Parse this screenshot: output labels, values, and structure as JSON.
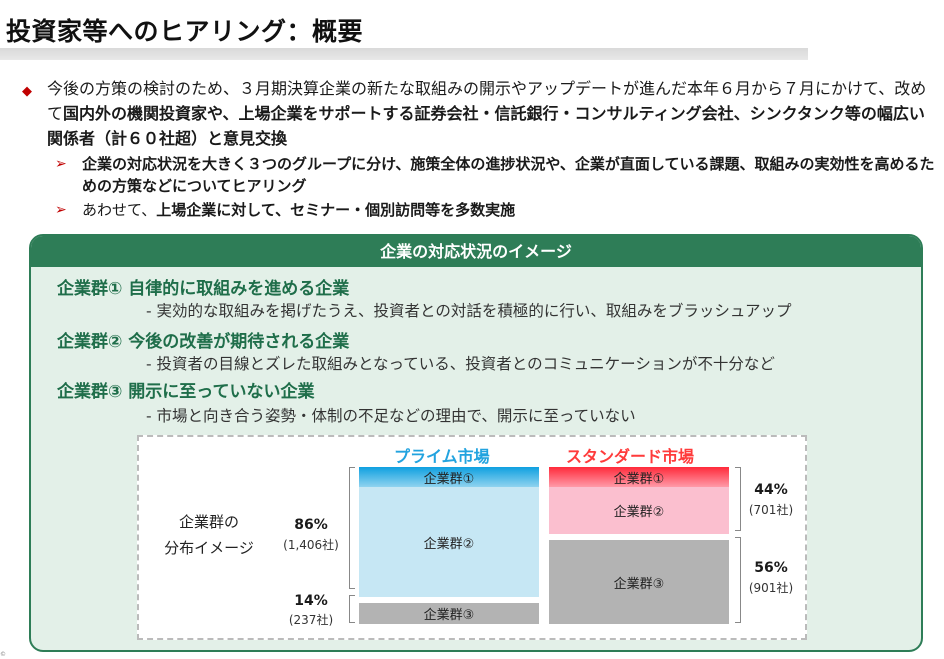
{
  "title": "投資家等へのヒアリング：概要",
  "intro": {
    "part1": "今後の方策の検討のため、３月期決算企業の新たな取組みの開示やアップデートが進んだ本年６月から７月にかけて、改めて",
    "part2_bold": "国内外の機関投資家や、上場企業をサポートする証券会社・信託銀行・コンサルティング会社、シンクタンク等の幅広い関係者（計６０社超）と意見交換"
  },
  "subs": [
    {
      "text": "企業の対応状況を大きく３つのグループに分け、施策全体の進捗状況や、企業が直面している課題、取組みの実効性を高めるための方策などについてヒアリング"
    },
    {
      "text_pre": "あわせて、",
      "text_bold": "上場企業に対して、セミナー・個別訪問等を多数実施"
    }
  ],
  "panel": {
    "header": "企業の対応状況のイメージ",
    "groups": [
      {
        "title": "企業群① 自律的に取組みを進める企業",
        "desc": "- 実効的な取組みを掲げたうえ、投資者との対話を積極的に行い、取組みをブラッシュアップ"
      },
      {
        "title": "企業群② 今後の改善が期待される企業",
        "desc": "- 投資者の目線とズレた取組みとなっている、投資者とのコミュニケーションが不十分など"
      },
      {
        "title": "企業群③ 開示に至っていない企業",
        "desc": "- 市場と向き合う姿勢・体制の不足などの理由で、開示に至っていない"
      }
    ]
  },
  "chart_data": {
    "type": "bar",
    "side_label": [
      "企業群の",
      "分布イメージ"
    ],
    "markets": [
      {
        "name": "プライム市場",
        "color": "#22a3df",
        "segments": [
          {
            "label": "企業群①",
            "share": 0.13
          },
          {
            "label": "企業群②",
            "share": 0.73
          },
          {
            "label": "企業群③",
            "share": 0.14
          }
        ],
        "annotations": [
          {
            "pct": "86%",
            "count": "(1,406社)"
          },
          {
            "pct": "14%",
            "count": "(237社)"
          }
        ]
      },
      {
        "name": "スタンダード市場",
        "color": "#ff3b3b",
        "segments": [
          {
            "label": "企業群①",
            "share": 0.13
          },
          {
            "label": "企業群②",
            "share": 0.31
          },
          {
            "label": "企業群③",
            "share": 0.56
          }
        ],
        "annotations": [
          {
            "pct": "44%",
            "count": "(701社)"
          },
          {
            "pct": "56%",
            "count": "(901社)"
          }
        ]
      }
    ]
  },
  "colors": {
    "accent_red": "#c00000",
    "panel_green": "#2e7d57",
    "panel_bg": "#e3f0e8",
    "prime_g1": "#1aa7e0",
    "prime_g2": "#c6e7f4",
    "std_g1": "#ff3b4a",
    "std_g2": "#fbbfcf",
    "group3": "#b3b3b3"
  }
}
